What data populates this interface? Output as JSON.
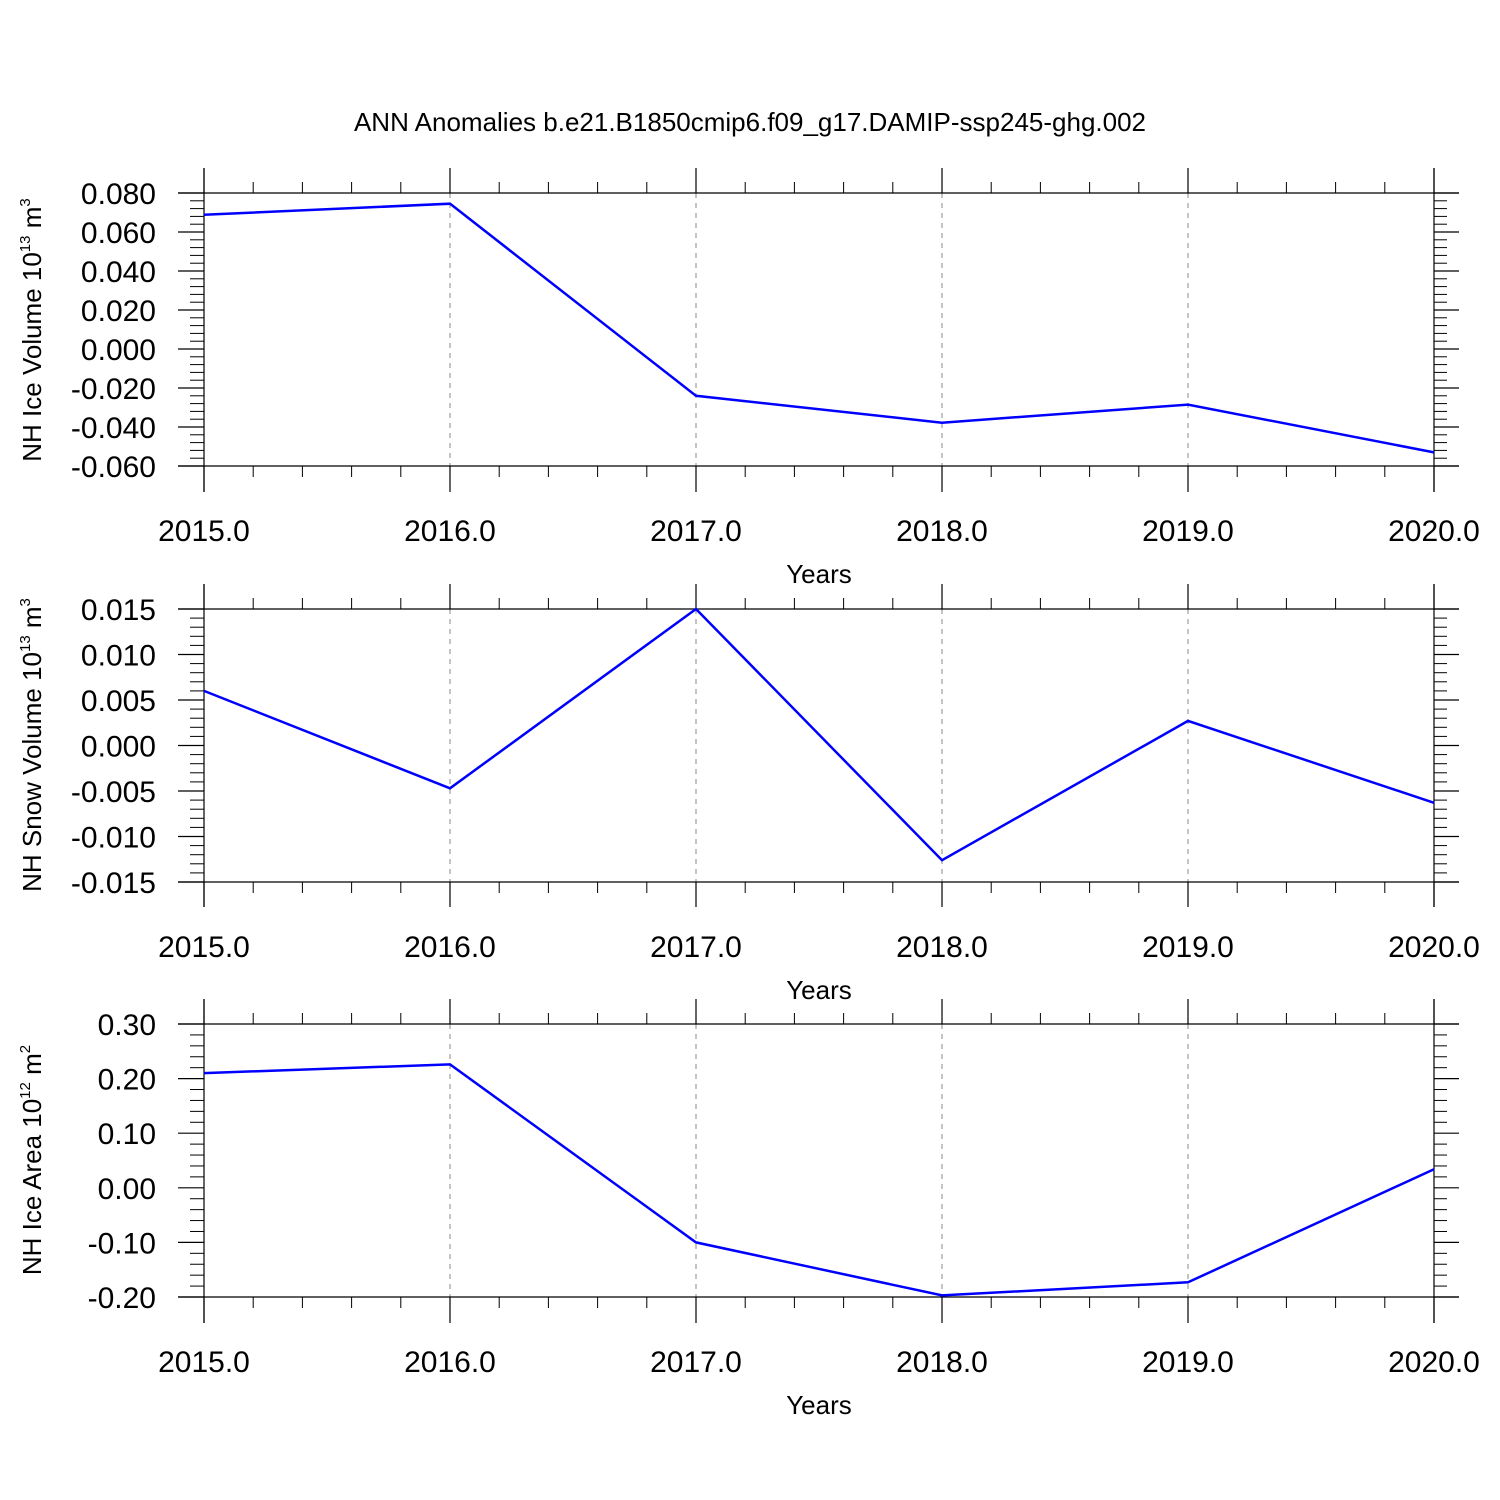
{
  "title": "ANN Anomalies b.e21.B1850cmip6.f09_g17.DAMIP-ssp245-ghg.002",
  "line_color": "#0000ff",
  "chart_data": [
    {
      "type": "line",
      "xlabel": "Years",
      "ylabel": {
        "main": "NH Ice Volume 10",
        "exp": "13",
        "unit": "m",
        "unit_exp": "3"
      },
      "x": [
        2015,
        2016,
        2017,
        2018,
        2019,
        2020
      ],
      "x_tick_labels": [
        "2015.0",
        "2016.0",
        "2017.0",
        "2018.0",
        "2019.0",
        "2020.0"
      ],
      "xlim": [
        2015,
        2020
      ],
      "y_ticks": [
        0.08,
        0.06,
        0.04,
        0.02,
        0.0,
        -0.02,
        -0.04,
        -0.06
      ],
      "y_tick_labels": [
        "0.080",
        "0.060",
        "0.040",
        "0.020",
        "0.000",
        "-0.020",
        "-0.040",
        "-0.060"
      ],
      "ylim": [
        -0.06,
        0.08
      ],
      "series": [
        {
          "values": [
            0.0688,
            0.0745,
            -0.024,
            -0.0378,
            -0.0285,
            -0.053
          ]
        }
      ],
      "grid": "vertical dashed"
    },
    {
      "type": "line",
      "xlabel": "Years",
      "ylabel": {
        "main": "NH Snow Volume 10",
        "exp": "13",
        "unit": "m",
        "unit_exp": "3"
      },
      "x": [
        2015,
        2016,
        2017,
        2018,
        2019,
        2020
      ],
      "x_tick_labels": [
        "2015.0",
        "2016.0",
        "2017.0",
        "2018.0",
        "2019.0",
        "2020.0"
      ],
      "xlim": [
        2015,
        2020
      ],
      "y_ticks": [
        0.015,
        0.01,
        0.005,
        0.0,
        -0.005,
        -0.01,
        -0.015
      ],
      "y_tick_labels": [
        "0.015",
        "0.010",
        "0.005",
        "0.000",
        "-0.005",
        "-0.010",
        "-0.015"
      ],
      "ylim": [
        -0.015,
        0.015
      ],
      "series": [
        {
          "values": [
            0.006,
            -0.0047,
            0.015,
            -0.0126,
            0.0027,
            -0.0063
          ]
        }
      ],
      "grid": "vertical dashed"
    },
    {
      "type": "line",
      "xlabel": "Years",
      "ylabel": {
        "main": "NH Ice Area 10",
        "exp": "12",
        "unit": "m",
        "unit_exp": "2"
      },
      "x": [
        2015,
        2016,
        2017,
        2018,
        2019,
        2020
      ],
      "x_tick_labels": [
        "2015.0",
        "2016.0",
        "2017.0",
        "2018.0",
        "2019.0",
        "2020.0"
      ],
      "xlim": [
        2015,
        2020
      ],
      "y_ticks": [
        0.3,
        0.2,
        0.1,
        0.0,
        -0.1,
        -0.2
      ],
      "y_tick_labels": [
        "0.30",
        "0.20",
        "0.10",
        "0.00",
        "-0.10",
        "-0.20"
      ],
      "ylim": [
        -0.2,
        0.3
      ],
      "series": [
        {
          "values": [
            0.21,
            0.226,
            -0.1,
            -0.197,
            -0.173,
            0.034
          ]
        }
      ],
      "grid": "vertical dashed"
    }
  ]
}
